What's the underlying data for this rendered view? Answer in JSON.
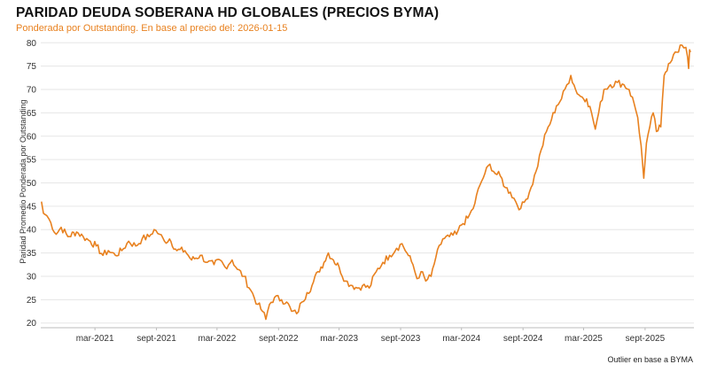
{
  "title": "PARIDAD DEUDA SOBERANA HD GLOBALES (PRECIOS BYMA)",
  "subtitle": "Ponderada por Outstanding. En base al precio del: 2026-01-15",
  "footer": "Outlier en base a BYMA",
  "colors": {
    "line": "#e8811f",
    "grid": "#e6e6e6",
    "axis": "#333333"
  },
  "chart_data": {
    "type": "line",
    "ylabel": "Paridad Promedio Ponderada por Outstanding",
    "xlabel": "",
    "ylim": [
      19,
      81
    ],
    "xlim": [
      "2020-09-20",
      "2026-01-25"
    ],
    "grid": true,
    "x_ticks": [
      {
        "date": "2021-03-01",
        "label": "mar-2021"
      },
      {
        "date": "2021-09-01",
        "label": "sept-2021"
      },
      {
        "date": "2022-03-01",
        "label": "mar-2022"
      },
      {
        "date": "2022-09-01",
        "label": "sept-2022"
      },
      {
        "date": "2023-03-01",
        "label": "mar-2023"
      },
      {
        "date": "2023-09-01",
        "label": "sept-2023"
      },
      {
        "date": "2024-03-01",
        "label": "mar-2024"
      },
      {
        "date": "2024-09-01",
        "label": "sept-2024"
      },
      {
        "date": "2025-03-01",
        "label": "mar-2025"
      },
      {
        "date": "2025-09-01",
        "label": "sept-2025"
      }
    ],
    "y_ticks": [
      20,
      25,
      30,
      35,
      40,
      45,
      50,
      55,
      60,
      65,
      70,
      75,
      80
    ],
    "series": [
      {
        "color": "#e8811f",
        "points": [
          [
            "2020-09-22",
            46.0
          ],
          [
            "2020-09-28",
            43.5
          ],
          [
            "2020-10-08",
            43.0
          ],
          [
            "2020-10-20",
            41.5
          ],
          [
            "2020-11-05",
            39.0
          ],
          [
            "2020-11-20",
            40.5
          ],
          [
            "2020-12-10",
            38.5
          ],
          [
            "2021-01-05",
            39.5
          ],
          [
            "2021-01-25",
            38.5
          ],
          [
            "2021-02-15",
            37.5
          ],
          [
            "2021-03-05",
            36.5
          ],
          [
            "2021-03-25",
            34.5
          ],
          [
            "2021-04-10",
            35.5
          ],
          [
            "2021-05-01",
            34.5
          ],
          [
            "2021-05-20",
            35.5
          ],
          [
            "2021-06-10",
            37.5
          ],
          [
            "2021-07-01",
            36.5
          ],
          [
            "2021-07-20",
            38.0
          ],
          [
            "2021-08-10",
            38.5
          ],
          [
            "2021-08-25",
            40.0
          ],
          [
            "2021-09-10",
            39.0
          ],
          [
            "2021-09-25",
            37.5
          ],
          [
            "2021-10-10",
            38.0
          ],
          [
            "2021-11-01",
            35.5
          ],
          [
            "2021-11-25",
            35.5
          ],
          [
            "2021-12-15",
            33.5
          ],
          [
            "2022-01-10",
            34.5
          ],
          [
            "2022-01-31",
            33.0
          ],
          [
            "2022-02-20",
            32.5
          ],
          [
            "2022-03-10",
            33.5
          ],
          [
            "2022-03-25",
            32.0
          ],
          [
            "2022-04-15",
            33.5
          ],
          [
            "2022-05-01",
            31.5
          ],
          [
            "2022-05-20",
            30.0
          ],
          [
            "2022-06-10",
            27.0
          ],
          [
            "2022-07-01",
            24.0
          ],
          [
            "2022-07-15",
            22.5
          ],
          [
            "2022-07-25",
            20.8
          ],
          [
            "2022-08-05",
            24.0
          ],
          [
            "2022-08-20",
            25.5
          ],
          [
            "2022-09-10",
            25.0
          ],
          [
            "2022-09-25",
            24.5
          ],
          [
            "2022-10-10",
            22.5
          ],
          [
            "2022-10-25",
            22.0
          ],
          [
            "2022-11-10",
            24.5
          ],
          [
            "2022-11-25",
            26.5
          ],
          [
            "2022-12-10",
            28.0
          ],
          [
            "2022-12-28",
            31.0
          ],
          [
            "2023-01-15",
            33.0
          ],
          [
            "2023-01-28",
            35.0
          ],
          [
            "2023-02-12",
            33.5
          ],
          [
            "2023-03-01",
            32.0
          ],
          [
            "2023-03-20",
            29.0
          ],
          [
            "2023-04-10",
            28.0
          ],
          [
            "2023-04-25",
            27.5
          ],
          [
            "2023-05-10",
            28.0
          ],
          [
            "2023-05-30",
            27.5
          ],
          [
            "2023-06-20",
            31.0
          ],
          [
            "2023-07-10",
            33.0
          ],
          [
            "2023-07-30",
            34.5
          ],
          [
            "2023-08-20",
            36.0
          ],
          [
            "2023-09-05",
            37.0
          ],
          [
            "2023-09-20",
            35.0
          ],
          [
            "2023-10-08",
            32.5
          ],
          [
            "2023-10-20",
            29.5
          ],
          [
            "2023-11-01",
            31.0
          ],
          [
            "2023-11-15",
            29.0
          ],
          [
            "2023-12-01",
            30.0
          ],
          [
            "2023-12-15",
            34.0
          ],
          [
            "2024-01-05",
            38.0
          ],
          [
            "2024-01-25",
            38.5
          ],
          [
            "2024-02-15",
            39.0
          ],
          [
            "2024-03-01",
            41.0
          ],
          [
            "2024-03-20",
            42.5
          ],
          [
            "2024-04-05",
            44.5
          ],
          [
            "2024-04-25",
            49.5
          ],
          [
            "2024-05-10",
            52.0
          ],
          [
            "2024-05-25",
            54.0
          ],
          [
            "2024-06-10",
            52.0
          ],
          [
            "2024-06-25",
            51.5
          ],
          [
            "2024-07-10",
            49.0
          ],
          [
            "2024-07-25",
            48.0
          ],
          [
            "2024-08-10",
            46.0
          ],
          [
            "2024-08-25",
            44.5
          ],
          [
            "2024-09-10",
            46.5
          ],
          [
            "2024-09-25",
            49.0
          ],
          [
            "2024-10-10",
            52.5
          ],
          [
            "2024-10-25",
            57.0
          ],
          [
            "2024-11-10",
            61.0
          ],
          [
            "2024-11-25",
            63.5
          ],
          [
            "2024-12-10",
            66.5
          ],
          [
            "2024-12-25",
            68.0
          ],
          [
            "2025-01-10",
            71.0
          ],
          [
            "2025-01-22",
            73.0
          ],
          [
            "2025-02-05",
            70.0
          ],
          [
            "2025-02-20",
            68.5
          ],
          [
            "2025-03-10",
            68.0
          ],
          [
            "2025-03-25",
            65.0
          ],
          [
            "2025-04-05",
            61.5
          ],
          [
            "2025-04-15",
            65.0
          ],
          [
            "2025-05-01",
            70.0
          ],
          [
            "2025-05-20",
            71.0
          ],
          [
            "2025-06-10",
            71.5
          ],
          [
            "2025-06-30",
            71.0
          ],
          [
            "2025-07-15",
            70.0
          ],
          [
            "2025-07-30",
            67.0
          ],
          [
            "2025-08-10",
            64.0
          ],
          [
            "2025-08-20",
            58.0
          ],
          [
            "2025-08-28",
            51.0
          ],
          [
            "2025-09-05",
            58.5
          ],
          [
            "2025-09-15",
            62.0
          ],
          [
            "2025-09-25",
            65.0
          ],
          [
            "2025-10-05",
            61.0
          ],
          [
            "2025-10-18",
            62.0
          ],
          [
            "2025-10-28",
            73.0
          ],
          [
            "2025-11-10",
            75.5
          ],
          [
            "2025-11-25",
            77.5
          ],
          [
            "2025-12-10",
            78.0
          ],
          [
            "2025-12-20",
            79.5
          ],
          [
            "2026-01-01",
            79.0
          ],
          [
            "2026-01-06",
            77.0
          ],
          [
            "2026-01-09",
            74.5
          ],
          [
            "2026-01-12",
            78.5
          ],
          [
            "2026-01-15",
            78.0
          ]
        ]
      }
    ]
  }
}
